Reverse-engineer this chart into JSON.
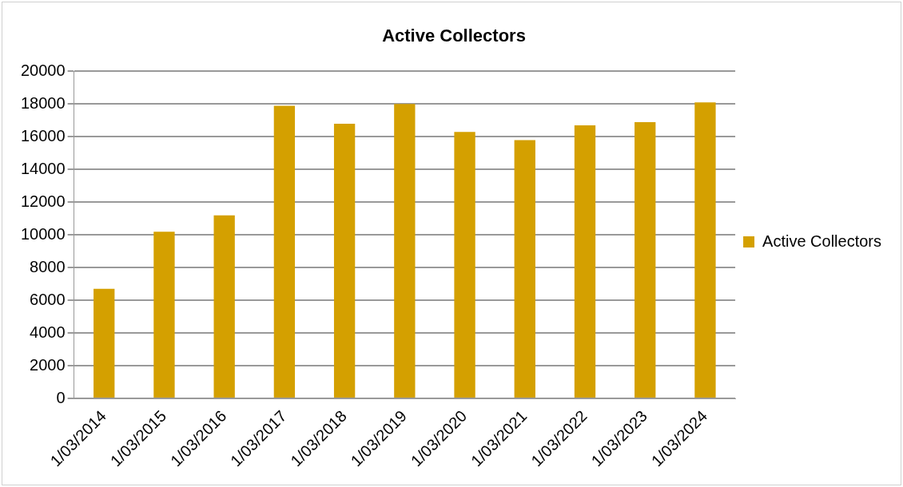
{
  "chart_data": {
    "type": "bar",
    "title": "Active Collectors",
    "categories": [
      "1/03/2014",
      "1/03/2015",
      "1/03/2016",
      "1/03/2017",
      "1/03/2018",
      "1/03/2019",
      "1/03/2020",
      "1/03/2021",
      "1/03/2022",
      "1/03/2023",
      "1/03/2024"
    ],
    "series": [
      {
        "name": "Active Collectors",
        "color": "#d4a000",
        "values": [
          6700,
          10200,
          11200,
          17900,
          16800,
          18000,
          16300,
          15800,
          16700,
          16900,
          18100
        ]
      }
    ],
    "ylim": [
      0,
      20000
    ],
    "yticks": [
      0,
      2000,
      4000,
      6000,
      8000,
      10000,
      12000,
      14000,
      16000,
      18000,
      20000
    ],
    "grid": "y",
    "legend": "right"
  }
}
